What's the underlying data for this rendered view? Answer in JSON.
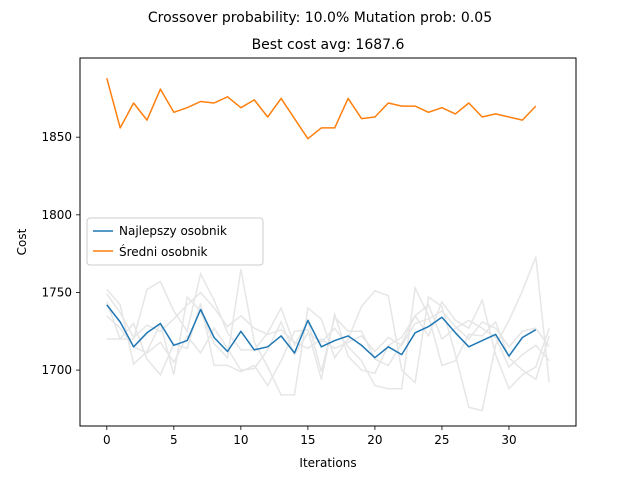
{
  "chart_data": {
    "type": "line",
    "suptitle": "Crossover probability: 10.0% Mutation prob: 0.05",
    "title": "Best cost avg: 1687.6",
    "xlabel": "Iterations",
    "ylabel": "Cost",
    "xlim": [
      -2,
      35
    ],
    "ylim": [
      1664,
      1901
    ],
    "xticks": [
      0,
      5,
      10,
      15,
      20,
      25,
      30
    ],
    "yticks": [
      1700,
      1750,
      1800,
      1850
    ],
    "grid": false,
    "legend_position": "center-left",
    "series": [
      {
        "name": "Najlepszy osobnik",
        "color": "#1f77b4",
        "x": [
          0,
          1,
          2,
          3,
          4,
          5,
          6,
          7,
          8,
          9,
          10,
          11,
          12,
          13,
          14,
          15,
          16,
          17,
          18,
          19,
          20,
          21,
          22,
          23,
          24,
          25,
          26,
          27,
          28,
          29,
          30,
          31,
          32
        ],
        "values": [
          1742,
          1731,
          1715,
          1724,
          1730,
          1716,
          1719,
          1739,
          1721,
          1712,
          1725,
          1713,
          1715,
          1722,
          1711,
          1732,
          1715,
          1719,
          1722,
          1716,
          1708,
          1715,
          1710,
          1724,
          1728,
          1734,
          1724,
          1715,
          1719,
          1723,
          1709,
          1721,
          1726
        ]
      },
      {
        "name": "Średni osobnik",
        "color": "#ff7f0e",
        "x": [
          0,
          1,
          2,
          3,
          4,
          5,
          6,
          7,
          8,
          9,
          10,
          11,
          12,
          13,
          14,
          15,
          16,
          17,
          18,
          19,
          20,
          21,
          22,
          23,
          24,
          25,
          26,
          27,
          28,
          29,
          30,
          31,
          32
        ],
        "values": [
          1888,
          1856,
          1872,
          1861,
          1881,
          1866,
          1869,
          1873,
          1872,
          1876,
          1869,
          1874,
          1863,
          1875,
          1862,
          1849,
          1856,
          1856,
          1875,
          1862,
          1863,
          1872,
          1870,
          1870,
          1866,
          1869,
          1865,
          1872,
          1863,
          1865,
          1863,
          1861,
          1870
        ]
      }
    ],
    "background_series": [
      {
        "color": "#e6e6e6",
        "x": [
          0,
          1,
          2,
          3,
          4,
          5,
          6,
          7,
          8,
          9,
          10,
          11,
          12,
          13,
          14,
          15,
          16,
          17,
          18,
          19,
          20,
          21,
          22,
          23,
          24,
          25,
          26,
          27,
          28,
          29,
          30,
          31,
          32,
          33
        ],
        "values": [
          1735,
          1727,
          1715,
          1711,
          1718,
          1705,
          1722,
          1711,
          1727,
          1714,
          1700,
          1701,
          1713,
          1731,
          1710,
          1724,
          1718,
          1727,
          1715,
          1706,
          1690,
          1688,
          1688,
          1753,
          1735,
          1703,
          1706,
          1723,
          1722,
          1731,
          1708,
          1700,
          1694,
          1722
        ]
      },
      {
        "color": "#e6e6e6",
        "x": [
          0,
          1,
          2,
          3,
          4,
          5,
          6,
          7,
          8,
          9,
          10,
          11,
          12,
          13,
          14,
          15,
          16,
          17,
          18,
          19,
          20,
          21,
          22,
          23,
          24,
          25,
          26,
          27,
          28,
          29,
          30,
          31,
          32,
          33
        ],
        "values": [
          1752,
          1742,
          1704,
          1712,
          1730,
          1697,
          1747,
          1738,
          1717,
          1708,
          1765,
          1718,
          1702,
          1684,
          1684,
          1740,
          1733,
          1708,
          1720,
          1741,
          1751,
          1748,
          1700,
          1692,
          1747,
          1741,
          1710,
          1676,
          1674,
          1716,
          1732,
          1751,
          1773,
          1692
        ]
      },
      {
        "color": "#e6e6e6",
        "x": [
          0,
          1,
          2,
          3,
          4,
          5,
          6,
          7,
          8,
          9,
          10,
          11,
          12,
          13,
          14,
          15,
          16,
          17,
          18,
          19,
          20,
          21,
          22,
          23,
          24,
          25,
          26,
          27,
          28,
          29,
          30,
          31,
          32,
          33
        ],
        "values": [
          1720,
          1720,
          1720,
          1752,
          1757,
          1738,
          1725,
          1762,
          1745,
          1724,
          1713,
          1713,
          1724,
          1740,
          1716,
          1732,
          1699,
          1734,
          1725,
          1725,
          1707,
          1703,
          1717,
          1735,
          1722,
          1744,
          1732,
          1727,
          1745,
          1710,
          1688,
          1697,
          1702,
          1727
        ]
      },
      {
        "color": "#e6e6e6",
        "x": [
          0,
          1,
          2,
          3,
          4,
          5,
          6,
          7,
          8,
          9,
          10,
          11,
          12,
          13,
          14,
          15,
          16,
          17,
          18,
          19,
          20,
          21,
          22,
          23,
          24,
          25,
          26,
          27,
          28,
          29,
          30,
          31,
          32,
          33
        ],
        "values": [
          1744,
          1720,
          1730,
          1707,
          1697,
          1717,
          1714,
          1743,
          1703,
          1703,
          1699,
          1703,
          1690,
          1706,
          1725,
          1726,
          1694,
          1736,
          1709,
          1700,
          1698,
          1716,
          1721,
          1735,
          1742,
          1720,
          1727,
          1732,
          1727,
          1721,
          1702,
          1710,
          1716,
          1706
        ]
      },
      {
        "color": "#e6e6e6",
        "x": [
          0,
          1,
          2,
          3,
          4,
          5,
          6,
          7,
          8,
          9,
          10,
          11,
          12,
          13,
          14,
          15,
          16,
          17,
          18,
          19,
          20,
          21,
          22,
          23,
          24,
          25,
          26,
          27,
          28,
          29,
          30,
          31,
          32,
          33
        ],
        "values": [
          1749,
          1737,
          1721,
          1729,
          1725,
          1733,
          1742,
          1750,
          1740,
          1728,
          1735,
          1727,
          1723,
          1726,
          1718,
          1714,
          1720,
          1714,
          1718,
          1722,
          1712,
          1721,
          1716,
          1730,
          1733,
          1738,
          1728,
          1720,
          1731,
          1727,
          1715,
          1725,
          1727,
          1715
        ]
      }
    ]
  }
}
